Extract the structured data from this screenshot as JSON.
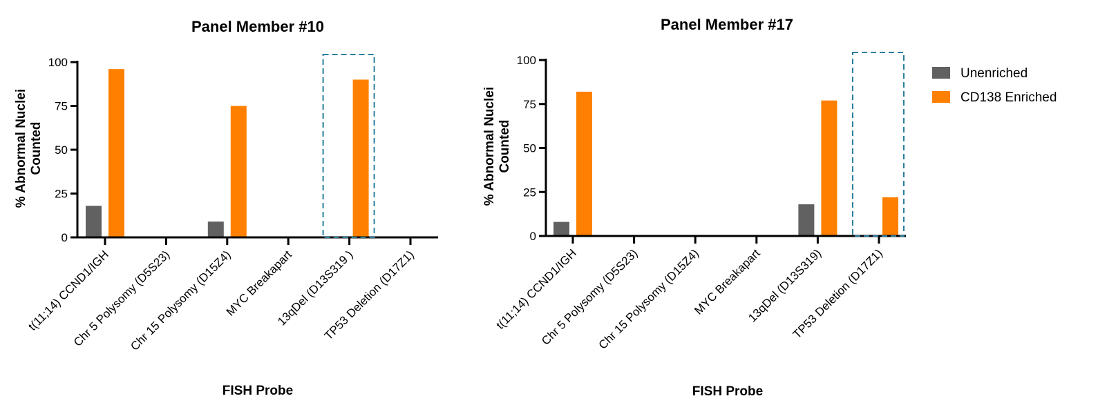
{
  "chart_data": [
    {
      "type": "bar",
      "title": "Panel Member #10",
      "xlabel": "FISH Probe",
      "ylabel_lines": [
        "% Abnormal Nuclei",
        "Counted"
      ],
      "ylim": [
        0,
        100
      ],
      "yticks": [
        0,
        25,
        50,
        75,
        100
      ],
      "categories": [
        "t(11;14) CCND1/IGH",
        "Chr 5 Polysomy (D5S23)",
        "Chr 15 Polysomy (D15Z4)",
        "MYC Breakapart",
        "13qDel (D13S319 )",
        "TP53 Deletion (D17Z1)"
      ],
      "series": [
        {
          "name": "Unenriched",
          "values": [
            18,
            0,
            9,
            0,
            0,
            0
          ]
        },
        {
          "name": "CD138 Enriched",
          "values": [
            96,
            0,
            75,
            0,
            90,
            0
          ]
        }
      ],
      "highlighted_category": "13qDel (D13S319 )",
      "grid": false
    },
    {
      "type": "bar",
      "title": "Panel Member #17",
      "xlabel": "FISH Probe",
      "ylabel_lines": [
        "% Abnormal Nuclei",
        "Counted"
      ],
      "ylim": [
        0,
        100
      ],
      "yticks": [
        0,
        25,
        50,
        75,
        100
      ],
      "categories": [
        "t(11;14) CCND1/IGH",
        "Chr 5 Polysomy (D5S23)",
        "Chr 15 Polysomy (D15Z4)",
        "MYC Breakapart",
        "13qDel (D13S319)",
        "TP53 Deletion (D17Z1)"
      ],
      "series": [
        {
          "name": "Unenriched",
          "values": [
            8,
            0,
            0,
            0,
            18,
            0
          ]
        },
        {
          "name": "CD138 Enriched",
          "values": [
            82,
            0,
            0,
            0,
            77,
            22
          ]
        }
      ],
      "highlighted_category": "TP53 Deletion (D17Z1)",
      "grid": false
    }
  ],
  "legend": {
    "placement": "right",
    "items": [
      {
        "label": "Unenriched",
        "color": "#616161"
      },
      {
        "label": "CD138 Enriched",
        "color": "#ff8000"
      }
    ]
  },
  "colors": {
    "unenriched": "#616161",
    "enriched": "#ff8000",
    "highlight_box": "#2a7f9e",
    "axis": "#000000"
  }
}
